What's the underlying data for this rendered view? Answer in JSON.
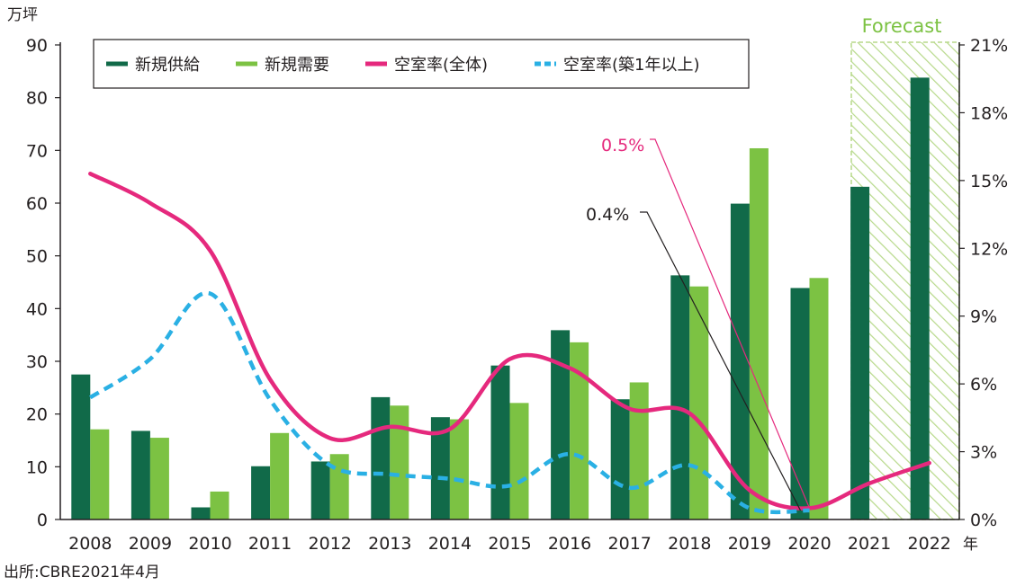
{
  "chart_data": {
    "type": "bar",
    "left_axis_unit": "万坪",
    "right_axis_unit": "",
    "x_unit": "年",
    "categories": [
      "2008",
      "2009",
      "2010",
      "2011",
      "2012",
      "2013",
      "2014",
      "2015",
      "2016",
      "2017",
      "2018",
      "2019",
      "2020",
      "2021",
      "2022"
    ],
    "y_left": {
      "min": 0,
      "max": 90,
      "ticks": [
        "0",
        "10",
        "20",
        "30",
        "40",
        "50",
        "60",
        "70",
        "80",
        "90"
      ]
    },
    "y_right": {
      "min": 0,
      "max": 21,
      "ticks": [
        "0%",
        "3%",
        "6%",
        "9%",
        "12%",
        "15%",
        "18%",
        "21%"
      ]
    },
    "series": [
      {
        "name": "新規供給",
        "type": "bar",
        "axis": "left",
        "color": "#116a49",
        "values": [
          27.5,
          16.8,
          2.3,
          10.1,
          11.0,
          23.2,
          19.4,
          29.2,
          35.9,
          22.8,
          46.3,
          59.9,
          43.9,
          63.1,
          83.8
        ]
      },
      {
        "name": "新規需要",
        "type": "bar",
        "axis": "left",
        "color": "#7cc243",
        "values": [
          17.1,
          15.5,
          5.3,
          16.4,
          12.4,
          21.6,
          19.0,
          22.1,
          33.6,
          26.0,
          44.2,
          70.4,
          45.8,
          null,
          null
        ]
      },
      {
        "name": "空室率(全体)",
        "type": "line",
        "axis": "right",
        "color": "#e5297d",
        "style": "solid",
        "values": [
          15.3,
          14.0,
          11.9,
          6.2,
          3.6,
          4.1,
          4.0,
          7.1,
          6.7,
          4.9,
          4.7,
          1.3,
          0.5,
          1.6,
          2.5
        ]
      },
      {
        "name": "空室率(築1年以上)",
        "type": "line",
        "axis": "right",
        "color": "#2ab0e4",
        "style": "dashed",
        "values": [
          5.4,
          7.1,
          10.0,
          5.3,
          2.4,
          2.0,
          1.8,
          1.5,
          2.9,
          1.4,
          2.4,
          0.5,
          0.4,
          null,
          null
        ]
      }
    ],
    "forecast": {
      "label": "Forecast",
      "from": "2021",
      "to": "2022"
    },
    "annotations": [
      {
        "text": "0.5%",
        "color": "#e5297d",
        "points_to": "2020"
      },
      {
        "text": "0.4%",
        "color": "#231f20",
        "points_to": "2020"
      }
    ],
    "legend": "top-left"
  },
  "source": "出所:CBRE2021年4月"
}
